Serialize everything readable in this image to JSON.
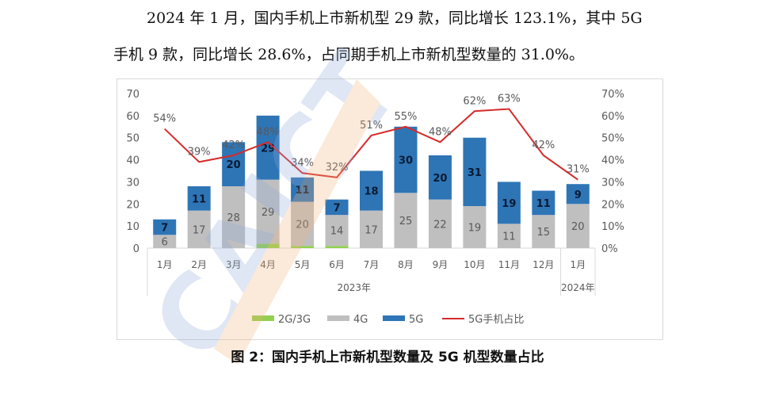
{
  "text": {
    "paragraph_line1": "2024 年 1 月，国内手机上市新机型 29 款，同比增长 123.1%，其中 5G",
    "paragraph_line2": "手机 9 款，同比增长 28.6%，占同期手机上市新机型数量的 31.0%。",
    "caption": "图 2：国内手机上市新机型数量及 5G 机型数量占比"
  },
  "watermark": {
    "text": "CAICT"
  },
  "chart_data": {
    "type": "bar",
    "stacked": true,
    "categories": [
      "1月",
      "2月",
      "3月",
      "4月",
      "5月",
      "6月",
      "7月",
      "8月",
      "9月",
      "10月",
      "11月",
      "12月",
      "1月"
    ],
    "group_labels": [
      {
        "label": "2023年",
        "from": 0,
        "to": 11
      },
      {
        "label": "2024年",
        "from": 12,
        "to": 12
      }
    ],
    "series": [
      {
        "name": "2G/3G",
        "values": [
          0,
          0,
          0,
          2,
          1,
          1,
          0,
          0,
          0,
          0,
          0,
          0,
          0
        ],
        "color": "#92d050"
      },
      {
        "name": "4G",
        "values": [
          6,
          17,
          28,
          29,
          20,
          14,
          17,
          25,
          22,
          19,
          11,
          15,
          20
        ],
        "color": "#bfbfbf"
      },
      {
        "name": "5G",
        "values": [
          7,
          11,
          20,
          29,
          11,
          7,
          18,
          30,
          20,
          31,
          19,
          11,
          9
        ],
        "color": "#2e75b6"
      }
    ],
    "line_series": {
      "name": "5G手机占比",
      "values": [
        54,
        39,
        42,
        48,
        34,
        32,
        51,
        55,
        48,
        62,
        63,
        42,
        31
      ],
      "labels": [
        "54%",
        "39%",
        "42%",
        "48%",
        "34%",
        "32%",
        "51%",
        "55%",
        "48%",
        "62%",
        "63%",
        "42%",
        "31%"
      ],
      "color": "#d62b2b",
      "axis": "right"
    },
    "y_left": {
      "min": 0,
      "max": 70,
      "ticks": [
        "0",
        "10",
        "20",
        "30",
        "40",
        "50",
        "60",
        "70"
      ]
    },
    "y_right": {
      "min": 0,
      "max": 70,
      "ticks": [
        "0%",
        "10%",
        "20%",
        "30%",
        "40%",
        "50%",
        "60%",
        "70%"
      ]
    },
    "legend_position": "bottom",
    "grid": false
  }
}
